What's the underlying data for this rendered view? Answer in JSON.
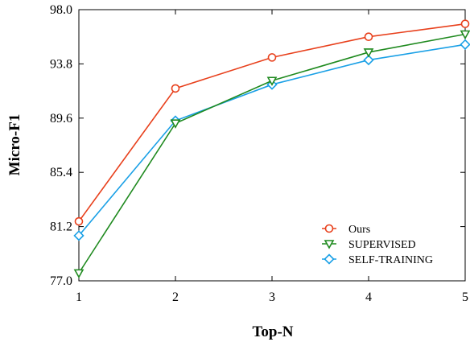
{
  "chart_data": {
    "type": "line",
    "title": "",
    "xlabel": "Top-N",
    "ylabel": "Micro-F1",
    "categories": [
      1,
      2,
      3,
      4,
      5
    ],
    "x_ticks": [
      "1",
      "2",
      "3",
      "4",
      "5"
    ],
    "y_ticks": [
      "77.0",
      "81.2",
      "85.4",
      "89.6",
      "93.8",
      "98.0"
    ],
    "ylim": [
      77.0,
      98.0
    ],
    "xlim": [
      1,
      5
    ],
    "grid": false,
    "legend_position": "bottom-right",
    "series": [
      {
        "name": "Ours",
        "color": "#e8401c",
        "marker": "circle",
        "values": [
          81.6,
          91.9,
          94.3,
          95.9,
          96.9
        ]
      },
      {
        "name": "SUPERVISED",
        "color": "#1f8a1f",
        "marker": "triangle-down",
        "values": [
          77.6,
          89.2,
          92.5,
          94.7,
          96.1
        ]
      },
      {
        "name": "SELF-TRAINING",
        "color": "#1aa0e6",
        "marker": "diamond",
        "values": [
          80.5,
          89.4,
          92.2,
          94.1,
          95.3
        ]
      }
    ]
  }
}
